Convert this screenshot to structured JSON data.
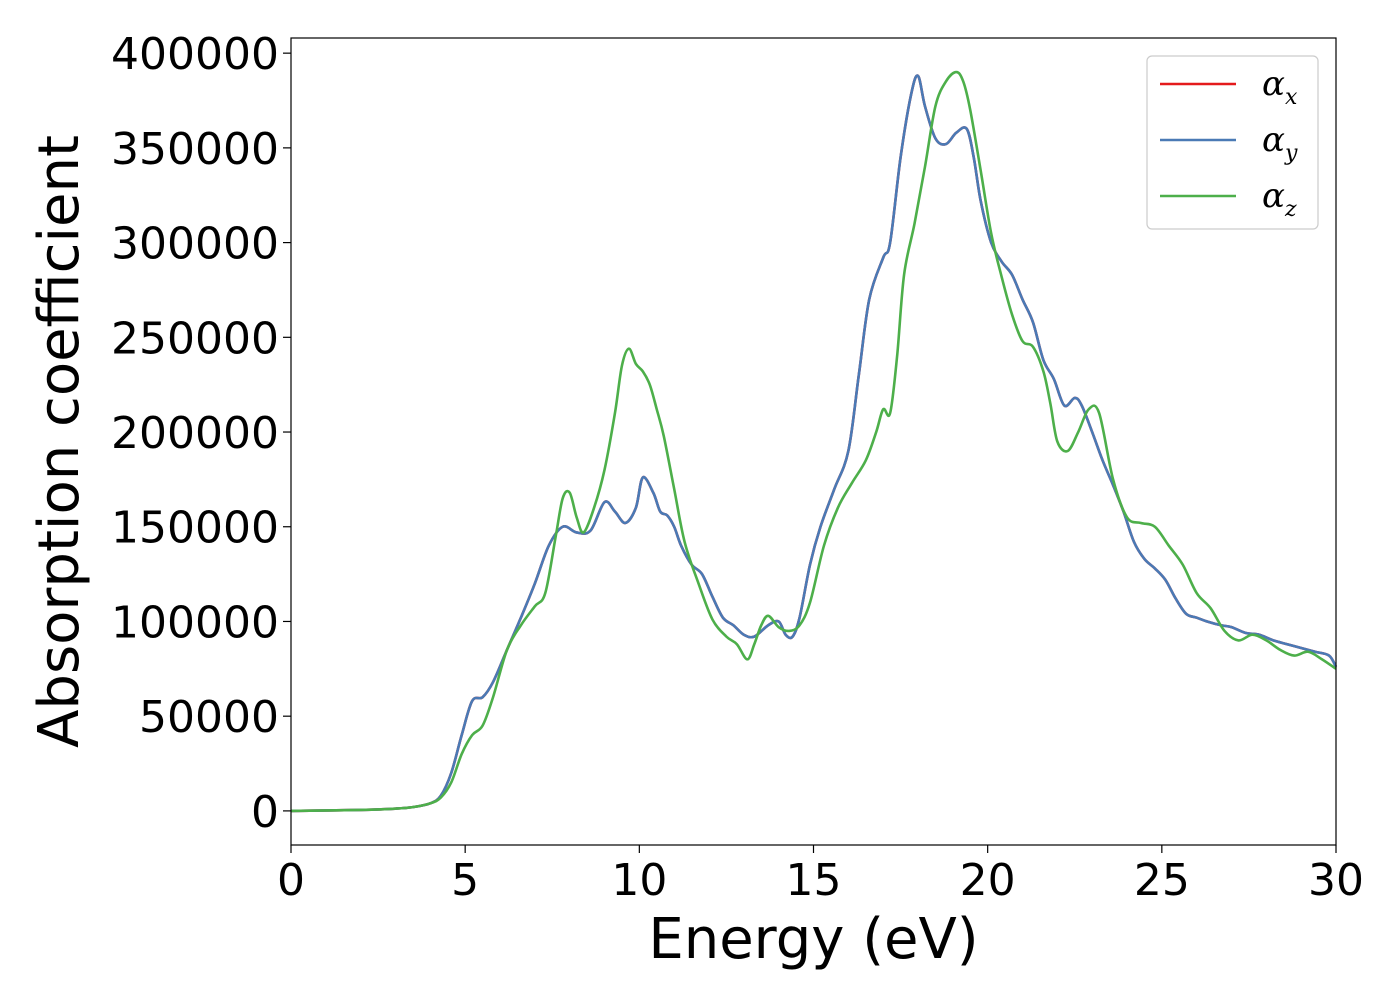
{
  "chart_data": {
    "type": "line",
    "title": "",
    "xlabel": "Energy (eV)",
    "ylabel": "Absorption coefficient",
    "xlim": [
      0,
      30
    ],
    "ylim": [
      -18000,
      408000
    ],
    "xticks": [
      0,
      5,
      10,
      15,
      20,
      25,
      30
    ],
    "yticks": [
      0,
      50000,
      100000,
      150000,
      200000,
      250000,
      300000,
      350000,
      400000
    ],
    "grid": false,
    "legend_position": "top-right",
    "series": [
      {
        "name": "α_x",
        "label_main": "α",
        "label_sub": "x",
        "color": "#e41a1c",
        "x": [
          0,
          2,
          3,
          3.5,
          4,
          4.3,
          4.6,
          4.9,
          5.2,
          5.5,
          5.8,
          6.2,
          6.6,
          7.0,
          7.4,
          7.8,
          8.2,
          8.6,
          9.0,
          9.3,
          9.6,
          9.9,
          10.1,
          10.4,
          10.6,
          10.8,
          11.0,
          11.2,
          11.5,
          11.8,
          12.1,
          12.4,
          12.7,
          13.0,
          13.3,
          13.7,
          14.0,
          14.2,
          14.4,
          14.6,
          14.9,
          15.2,
          15.6,
          16.0,
          16.3,
          16.6,
          17.0,
          17.2,
          17.5,
          17.8,
          18.0,
          18.2,
          18.5,
          18.8,
          19.1,
          19.4,
          19.6,
          19.8,
          20.1,
          20.4,
          20.7,
          21.0,
          21.3,
          21.6,
          21.9,
          22.2,
          22.5,
          22.7,
          23.0,
          23.3,
          23.6,
          23.9,
          24.2,
          24.5,
          24.8,
          25.1,
          25.4,
          25.7,
          26.0,
          26.3,
          26.7,
          27.0,
          27.4,
          27.8,
          28.2,
          28.6,
          29.0,
          29.4,
          29.8,
          30.0
        ],
        "y": [
          0,
          500,
          1200,
          2000,
          4000,
          8000,
          20000,
          40000,
          58000,
          60000,
          68000,
          85000,
          102000,
          120000,
          140000,
          150000,
          147000,
          148000,
          163000,
          158000,
          152000,
          160000,
          176000,
          168000,
          158000,
          156000,
          150000,
          140000,
          130000,
          125000,
          113000,
          102000,
          98000,
          93000,
          92000,
          98000,
          100000,
          93000,
          92000,
          102000,
          130000,
          150000,
          170000,
          190000,
          230000,
          270000,
          292000,
          300000,
          345000,
          378000,
          388000,
          372000,
          355000,
          352000,
          358000,
          360000,
          345000,
          322000,
          300000,
          290000,
          283000,
          270000,
          258000,
          238000,
          228000,
          214000,
          218000,
          214000,
          200000,
          185000,
          172000,
          158000,
          142000,
          133000,
          128000,
          122000,
          112000,
          104000,
          102000,
          100000,
          98000,
          97000,
          94000,
          93000,
          90000,
          88000,
          86000,
          84000,
          82000,
          76000
        ]
      },
      {
        "name": "α_y",
        "label_main": "α",
        "label_sub": "y",
        "color": "#4a7ab5",
        "x": [
          0,
          2,
          3,
          3.5,
          4,
          4.3,
          4.6,
          4.9,
          5.2,
          5.5,
          5.8,
          6.2,
          6.6,
          7.0,
          7.4,
          7.8,
          8.2,
          8.6,
          9.0,
          9.3,
          9.6,
          9.9,
          10.1,
          10.4,
          10.6,
          10.8,
          11.0,
          11.2,
          11.5,
          11.8,
          12.1,
          12.4,
          12.7,
          13.0,
          13.3,
          13.7,
          14.0,
          14.2,
          14.4,
          14.6,
          14.9,
          15.2,
          15.6,
          16.0,
          16.3,
          16.6,
          17.0,
          17.2,
          17.5,
          17.8,
          18.0,
          18.2,
          18.5,
          18.8,
          19.1,
          19.4,
          19.6,
          19.8,
          20.1,
          20.4,
          20.7,
          21.0,
          21.3,
          21.6,
          21.9,
          22.2,
          22.5,
          22.7,
          23.0,
          23.3,
          23.6,
          23.9,
          24.2,
          24.5,
          24.8,
          25.1,
          25.4,
          25.7,
          26.0,
          26.3,
          26.7,
          27.0,
          27.4,
          27.8,
          28.2,
          28.6,
          29.0,
          29.4,
          29.8,
          30.0
        ],
        "y": [
          0,
          500,
          1200,
          2000,
          4000,
          8000,
          20000,
          40000,
          58000,
          60000,
          68000,
          85000,
          102000,
          120000,
          140000,
          150000,
          147000,
          148000,
          163000,
          158000,
          152000,
          160000,
          176000,
          168000,
          158000,
          156000,
          150000,
          140000,
          130000,
          125000,
          113000,
          102000,
          98000,
          93000,
          92000,
          98000,
          100000,
          93000,
          92000,
          102000,
          130000,
          150000,
          170000,
          190000,
          230000,
          270000,
          292000,
          300000,
          345000,
          378000,
          388000,
          372000,
          355000,
          352000,
          358000,
          360000,
          345000,
          322000,
          300000,
          290000,
          283000,
          270000,
          258000,
          238000,
          228000,
          214000,
          218000,
          214000,
          200000,
          185000,
          172000,
          158000,
          142000,
          133000,
          128000,
          122000,
          112000,
          104000,
          102000,
          100000,
          98000,
          97000,
          94000,
          93000,
          90000,
          88000,
          86000,
          84000,
          82000,
          76000
        ]
      },
      {
        "name": "α_z",
        "label_main": "α",
        "label_sub": "z",
        "color": "#4daf4a",
        "x": [
          0,
          2,
          3,
          3.5,
          4,
          4.3,
          4.6,
          4.9,
          5.2,
          5.5,
          5.8,
          6.2,
          6.6,
          7.0,
          7.3,
          7.6,
          7.8,
          8.0,
          8.2,
          8.4,
          8.7,
          9.0,
          9.3,
          9.5,
          9.7,
          9.9,
          10.1,
          10.3,
          10.5,
          10.7,
          11.0,
          11.3,
          11.7,
          12.1,
          12.5,
          12.8,
          13.1,
          13.3,
          13.5,
          13.7,
          14.0,
          14.3,
          14.6,
          14.9,
          15.3,
          15.7,
          16.1,
          16.5,
          16.8,
          17.0,
          17.2,
          17.4,
          17.6,
          17.9,
          18.2,
          18.5,
          18.8,
          19.1,
          19.3,
          19.5,
          19.8,
          20.1,
          20.4,
          20.7,
          21.0,
          21.3,
          21.6,
          21.8,
          22.0,
          22.3,
          22.6,
          22.9,
          23.2,
          23.6,
          24.0,
          24.4,
          24.8,
          25.2,
          25.6,
          26.0,
          26.4,
          26.8,
          27.2,
          27.6,
          28.0,
          28.4,
          28.8,
          29.2,
          29.6,
          30.0
        ],
        "y": [
          0,
          500,
          1200,
          2000,
          4000,
          7000,
          15000,
          30000,
          40000,
          45000,
          60000,
          85000,
          98000,
          108000,
          115000,
          145000,
          165000,
          168000,
          155000,
          147000,
          160000,
          180000,
          210000,
          235000,
          244000,
          236000,
          232000,
          225000,
          212000,
          198000,
          170000,
          142000,
          120000,
          101000,
          92000,
          88000,
          80000,
          88000,
          98000,
          103000,
          97000,
          95000,
          98000,
          110000,
          140000,
          160000,
          173000,
          185000,
          200000,
          212000,
          210000,
          240000,
          283000,
          310000,
          340000,
          372000,
          385000,
          390000,
          385000,
          370000,
          338000,
          305000,
          282000,
          262000,
          248000,
          245000,
          232000,
          215000,
          195000,
          190000,
          200000,
          212000,
          210000,
          175000,
          155000,
          152000,
          150000,
          140000,
          130000,
          115000,
          107000,
          95000,
          90000,
          93000,
          90000,
          85000,
          82000,
          84000,
          80000,
          75000
        ]
      }
    ]
  }
}
